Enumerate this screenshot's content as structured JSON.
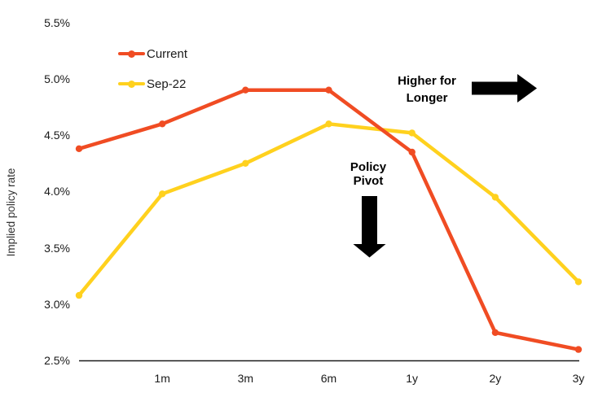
{
  "chart_data": {
    "type": "line",
    "ylabel": "Implied policy rate",
    "categories": [
      "",
      "1m",
      "3m",
      "6m",
      "1y",
      "2y",
      "3y"
    ],
    "series": [
      {
        "name": "Current",
        "color": "#F04C23",
        "values": [
          4.38,
          4.6,
          4.9,
          4.9,
          4.35,
          2.75,
          2.6
        ]
      },
      {
        "name": "Sep-22",
        "color": "#FFD11E",
        "values": [
          3.08,
          3.98,
          4.25,
          4.6,
          4.52,
          3.95,
          3.2
        ]
      }
    ],
    "ylim": [
      2.5,
      5.5
    ],
    "y_ticks": [
      "5.5%",
      "5.0%",
      "4.5%",
      "4.0%",
      "3.5%",
      "3.0%",
      "2.5%"
    ],
    "grid": false,
    "legend_position": "top-left",
    "axis_color": "#1A1A1A",
    "annotation_color": "#000000",
    "annotations": [
      {
        "id": "higher-for-longer",
        "text_lines": [
          "Higher for",
          "Longer"
        ],
        "icon": "arrow-right-icon"
      },
      {
        "id": "policy-pivot",
        "text_lines": [
          "Policy",
          "Pivot"
        ],
        "icon": "arrow-down-icon"
      }
    ]
  }
}
